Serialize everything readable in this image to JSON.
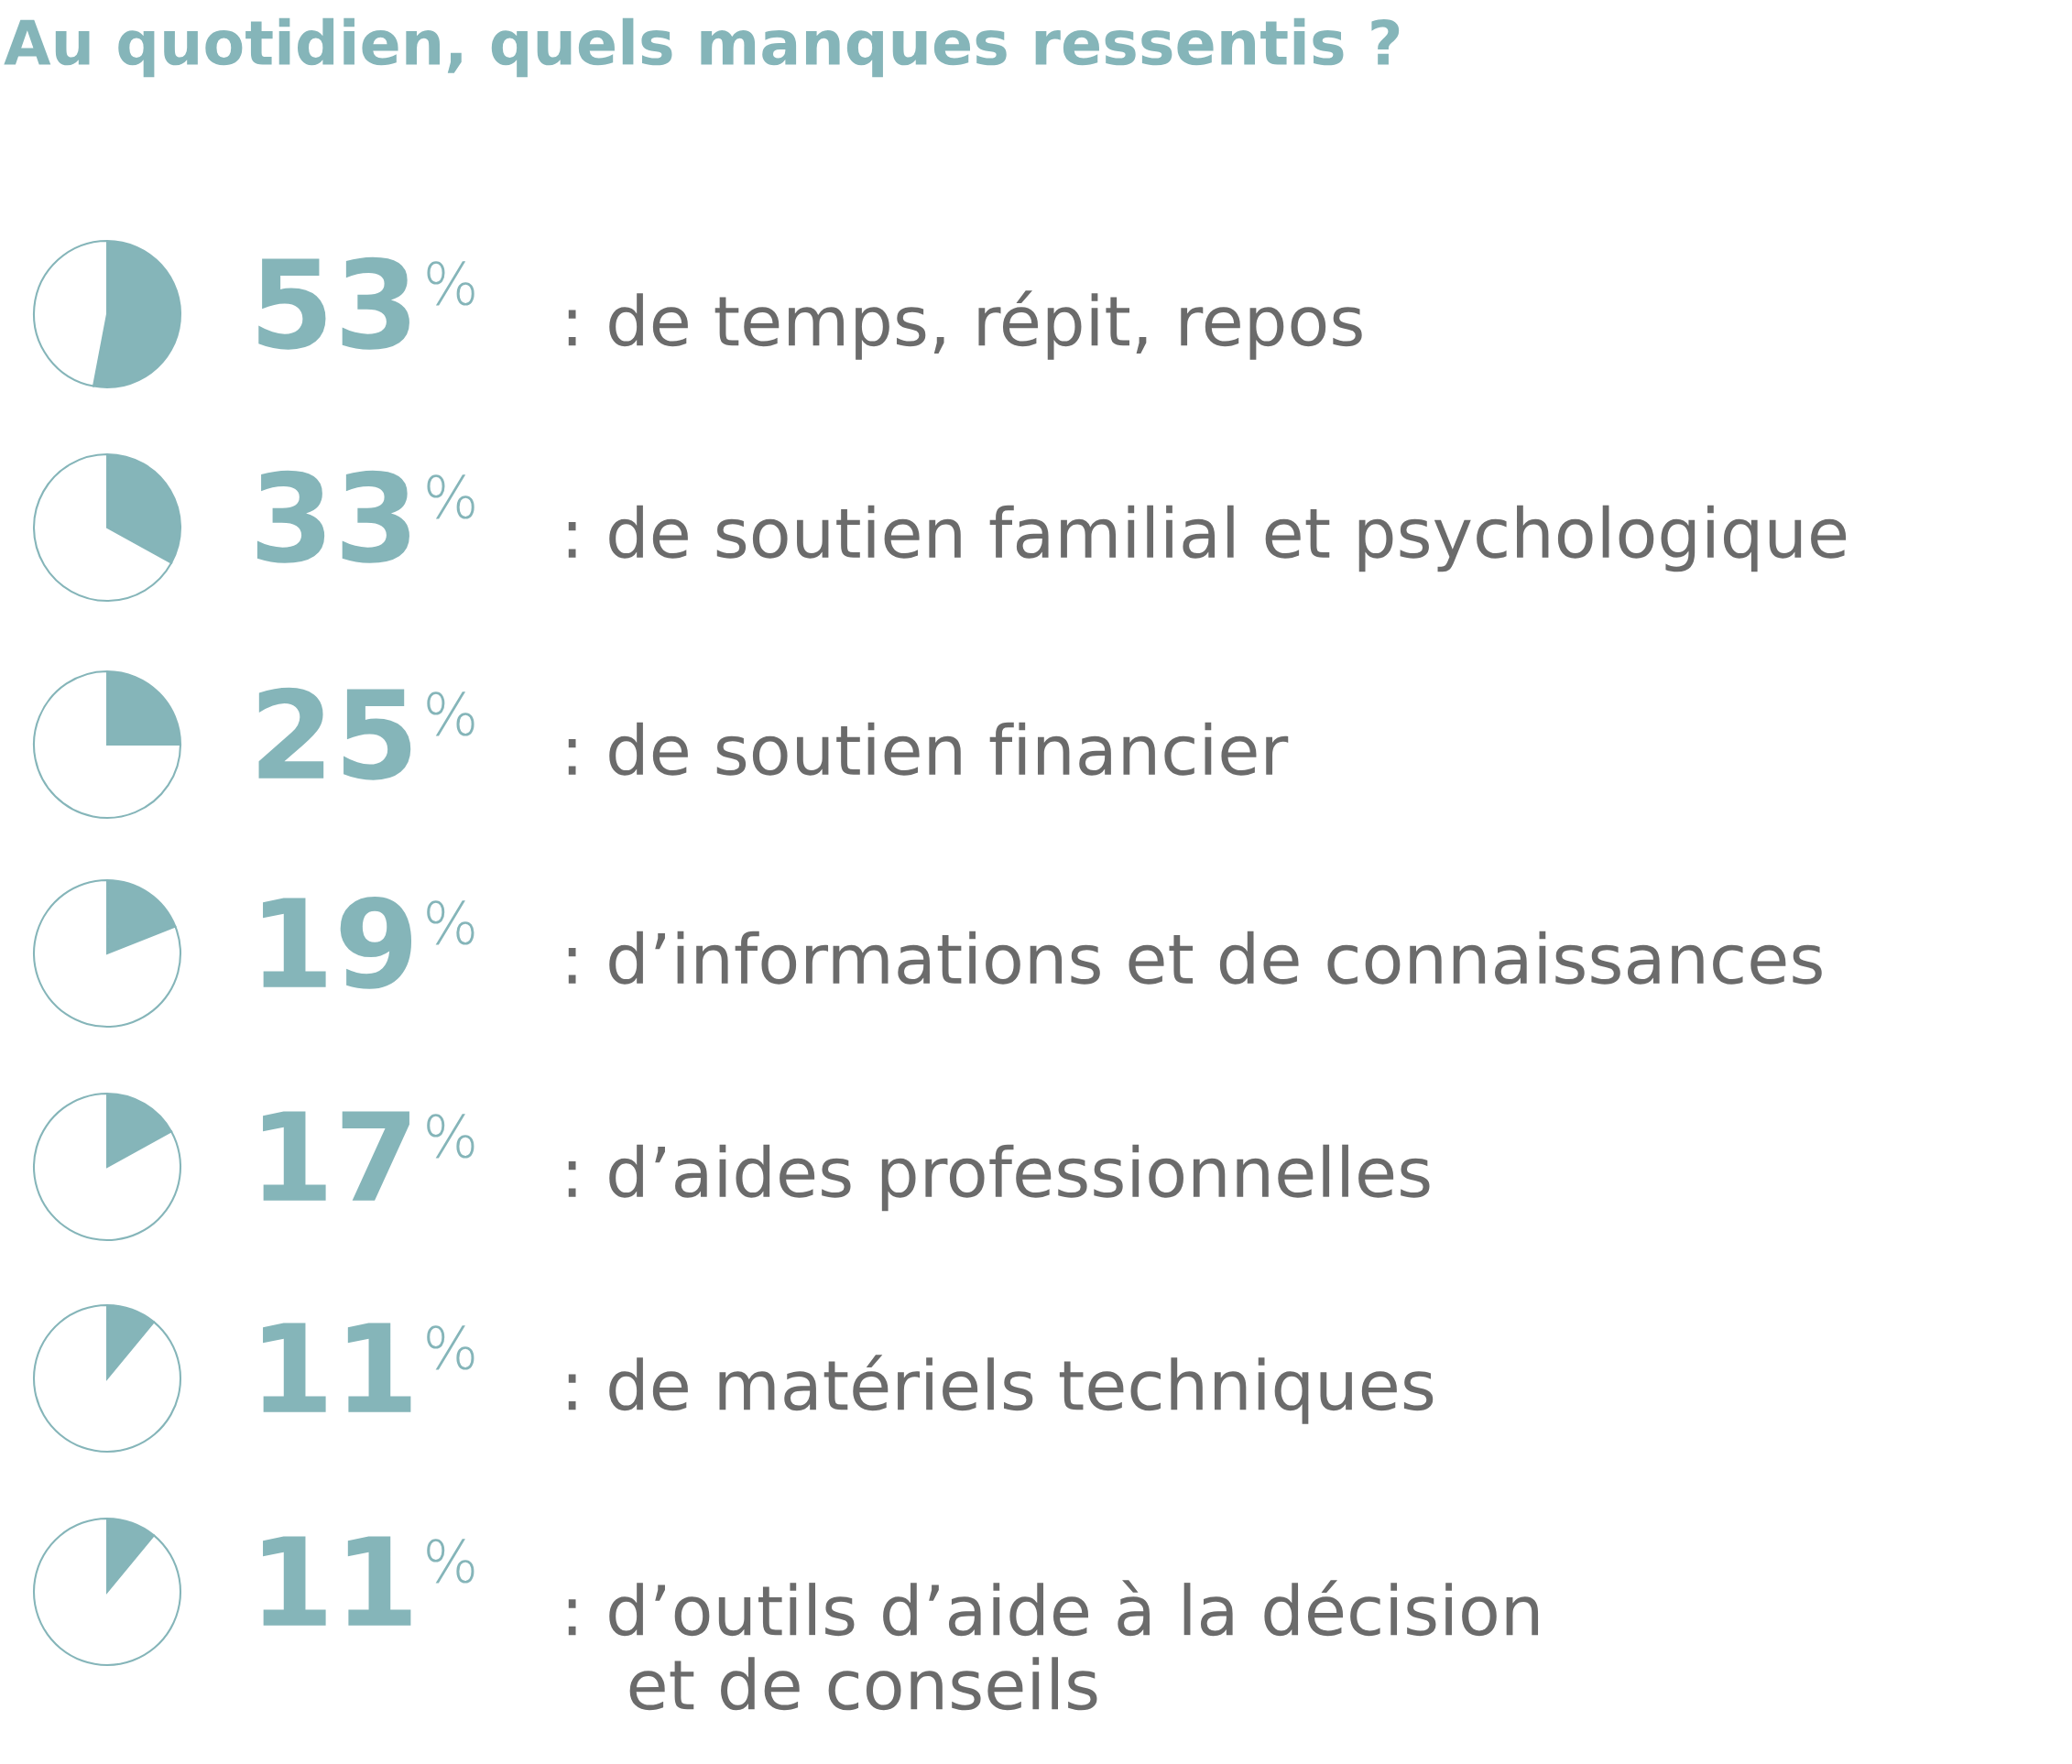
{
  "chart_data": [
    {
      "type": "other",
      "title": "Au quotidien, quels manques ressentis ?"
    },
    {
      "type": "pie",
      "title": ": de temps, répit, repos",
      "values": [
        53,
        47
      ],
      "colors": [
        "#85b5b9",
        "#ffffff"
      ],
      "value_labels": [
        "53%",
        null
      ]
    },
    {
      "type": "pie",
      "title": ": de soutien familial et psychologique",
      "values": [
        33,
        67
      ],
      "colors": [
        "#85b5b9",
        "#ffffff"
      ],
      "value_labels": [
        "33%",
        null
      ]
    },
    {
      "type": "pie",
      "title": ": de soutien financier",
      "values": [
        25,
        75
      ],
      "colors": [
        "#85b5b9",
        "#ffffff"
      ],
      "value_labels": [
        "25%",
        null
      ]
    },
    {
      "type": "pie",
      "title": ": d’informations et de connaissances",
      "values": [
        19,
        81
      ],
      "colors": [
        "#85b5b9",
        "#ffffff"
      ],
      "value_labels": [
        "19%",
        null
      ]
    },
    {
      "type": "pie",
      "title": ": d’aides professionnelles",
      "values": [
        17,
        83
      ],
      "colors": [
        "#85b5b9",
        "#ffffff"
      ],
      "value_labels": [
        "17%",
        null
      ]
    },
    {
      "type": "pie",
      "title": ": de matériels techniques",
      "values": [
        11,
        89
      ],
      "colors": [
        "#85b5b9",
        "#ffffff"
      ],
      "value_labels": [
        "11%",
        null
      ]
    },
    {
      "type": "pie",
      "title": ": d’outils d’aide à la décision\n   et de conseils",
      "values": [
        11,
        89
      ],
      "colors": [
        "#85b5b9",
        "#ffffff"
      ],
      "value_labels": [
        "11%",
        null
      ]
    }
  ]
}
